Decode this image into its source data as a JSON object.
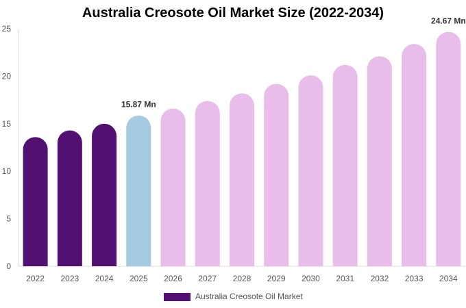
{
  "chart_data": {
    "type": "bar",
    "title": "Australia Creosote Oil Market Size (2022-2034)",
    "xlabel": "",
    "ylabel": "",
    "categories": [
      "2022",
      "2023",
      "2024",
      "2025",
      "2026",
      "2027",
      "2028",
      "2029",
      "2030",
      "2031",
      "2032",
      "2033",
      "2034"
    ],
    "series": [
      {
        "name": "Australia Creosote Oil Market",
        "values": [
          13.6,
          14.3,
          15.0,
          15.87,
          16.6,
          17.4,
          18.2,
          19.2,
          20.1,
          21.2,
          22.1,
          23.4,
          24.67
        ]
      }
    ],
    "bar_colors": [
      "#521172",
      "#521172",
      "#521172",
      "#a4cbe0",
      "#e8bde9",
      "#e8bde9",
      "#e8bde9",
      "#e8bde9",
      "#e8bde9",
      "#e8bde9",
      "#e8bde9",
      "#e8bde9",
      "#e8bde9"
    ],
    "legend_color": "#521172",
    "data_labels": [
      {
        "index": 3,
        "text": "15.87 Mn"
      },
      {
        "index": 12,
        "text": "24.67 Mn"
      }
    ],
    "y_ticks": [
      0,
      5,
      10,
      15,
      20,
      25
    ],
    "ylim": [
      0,
      25
    ],
    "grid": false,
    "legend_position": "bottom"
  }
}
